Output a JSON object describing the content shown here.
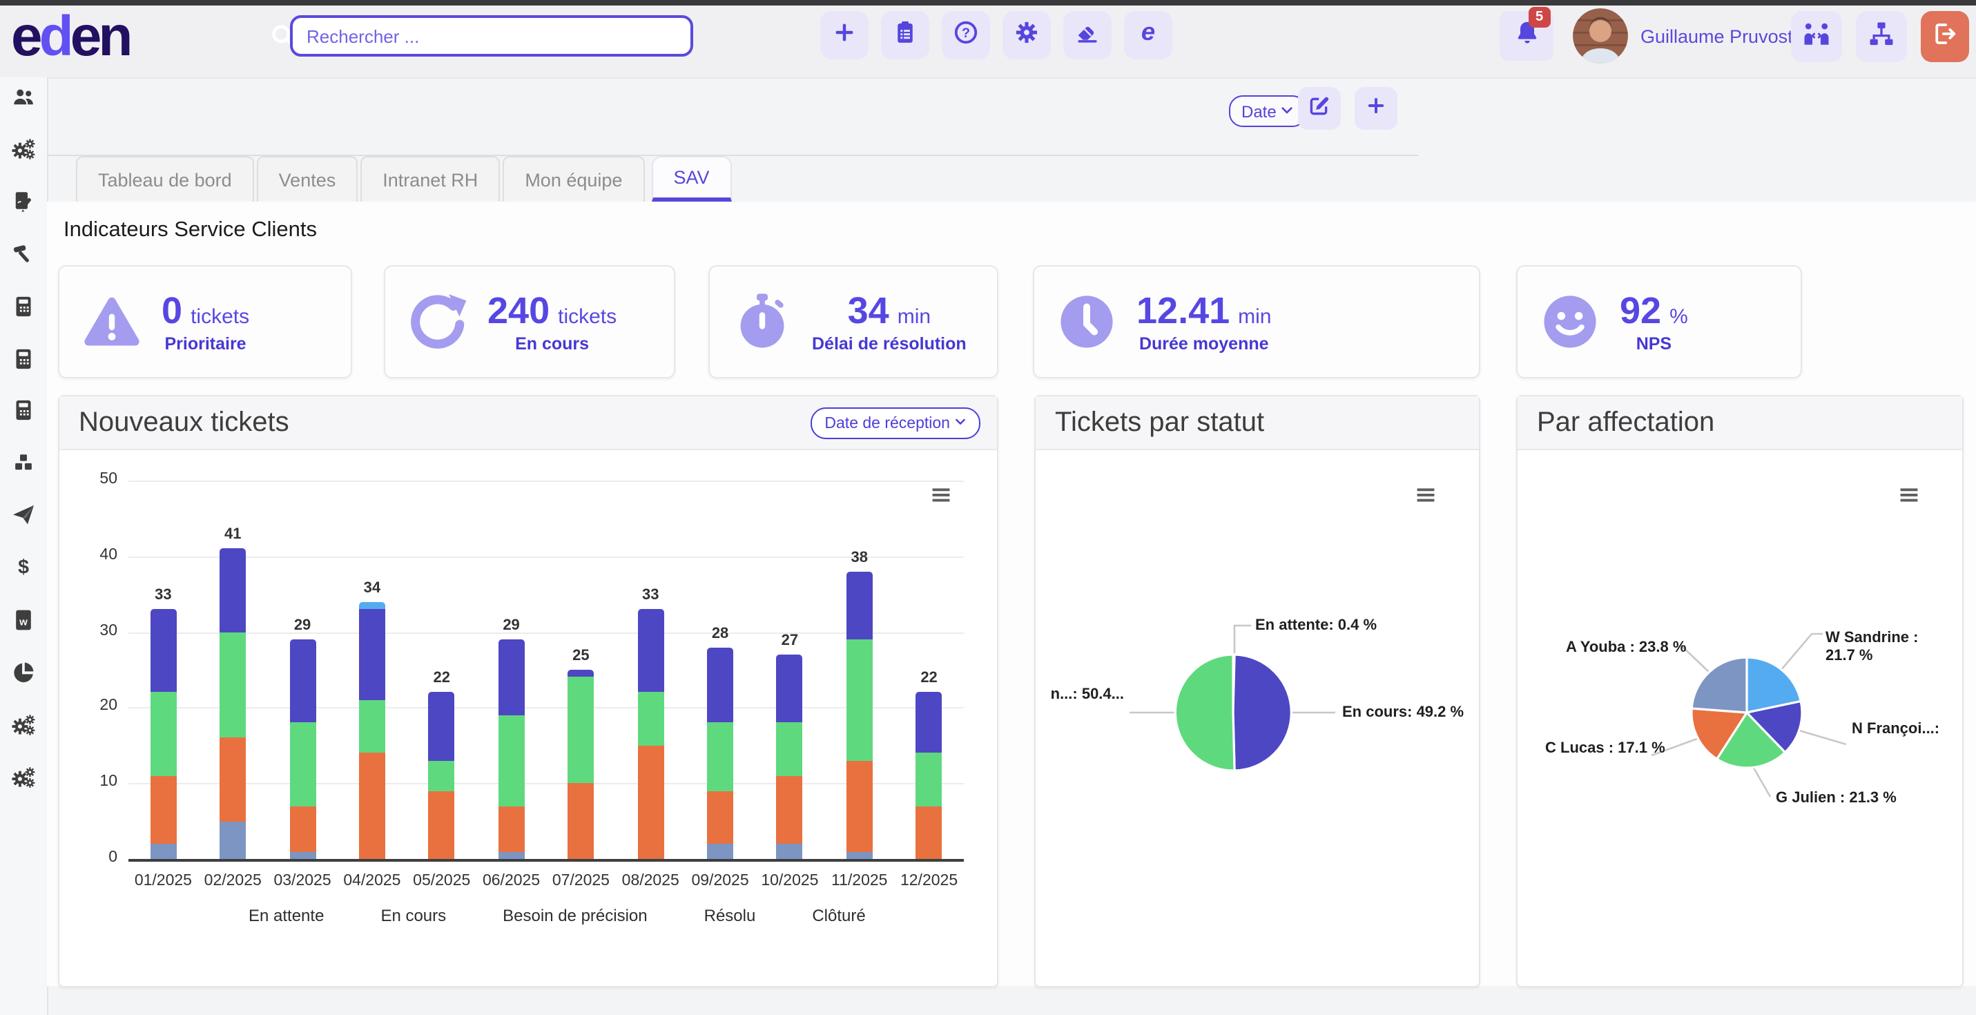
{
  "app": {
    "logo": "eden"
  },
  "header": {
    "search_placeholder": "Rechercher ...",
    "quick_actions": [
      "plus-icon",
      "clipboard-icon",
      "question-icon",
      "gear-icon",
      "eraser-icon",
      "eden-e-icon"
    ],
    "notifications_count": "5",
    "user_name": "Guillaume Pruvost",
    "right_actions": [
      "people-arrows-icon",
      "sitemap-icon",
      "sign-out-icon"
    ]
  },
  "sidebar": {
    "items": [
      "users-icon",
      "gears-icon",
      "file-signature-icon",
      "hammer-icon",
      "calculator-icon",
      "calculator-icon",
      "calculator-icon",
      "cubes-icon",
      "paper-plane-icon",
      "dollar-icon",
      "file-word-icon",
      "chart-pie-icon",
      "gears-icon",
      "gears-icon"
    ]
  },
  "toolbar": {
    "date_label": "Date"
  },
  "tabs": [
    {
      "label": "Tableau de bord",
      "active": false
    },
    {
      "label": "Ventes",
      "active": false
    },
    {
      "label": "Intranet RH",
      "active": false
    },
    {
      "label": "Mon équipe",
      "active": false
    },
    {
      "label": "SAV",
      "active": true
    }
  ],
  "section_title": "Indicateurs Service Clients",
  "kpis": [
    {
      "icon": "warning-icon",
      "value": "0",
      "unit": "tickets",
      "label": "Prioritaire"
    },
    {
      "icon": "rotate-right-icon",
      "value": "240",
      "unit": "tickets",
      "label": "En cours"
    },
    {
      "icon": "stopwatch-icon",
      "value": "34",
      "unit": "min",
      "label": "Délai de résolution"
    },
    {
      "icon": "clock-icon",
      "value": "12.41",
      "unit": "min",
      "label": "Durée moyenne"
    },
    {
      "icon": "smiley-icon",
      "value": "92",
      "unit": "%",
      "label": "NPS"
    }
  ],
  "chart_data": [
    {
      "type": "bar",
      "title": "Nouveaux tickets",
      "filter_label": "Date de réception",
      "categories": [
        "01/2025",
        "02/2025",
        "03/2025",
        "04/2025",
        "05/2025",
        "06/2025",
        "07/2025",
        "08/2025",
        "09/2025",
        "10/2025",
        "11/2025",
        "12/2025"
      ],
      "series": [
        {
          "name": "En attente",
          "color": "#55abef",
          "values": [
            0,
            0,
            0,
            1,
            0,
            0,
            0,
            0,
            0,
            0,
            0,
            0
          ]
        },
        {
          "name": "En cours",
          "color": "#4d47c3",
          "values": [
            11,
            11,
            11,
            12,
            9,
            10,
            1,
            11,
            10,
            9,
            9,
            8
          ]
        },
        {
          "name": "Besoin de précision",
          "color": "#5fd97e",
          "values": [
            11,
            14,
            11,
            7,
            4,
            12,
            14,
            7,
            9,
            7,
            16,
            7
          ]
        },
        {
          "name": "Résolu",
          "color": "#e8713f",
          "values": [
            9,
            11,
            6,
            14,
            9,
            6,
            10,
            15,
            7,
            9,
            12,
            7
          ]
        },
        {
          "name": "Clôturé",
          "color": "#7d95c3",
          "values": [
            2,
            5,
            1,
            0,
            0,
            1,
            0,
            0,
            2,
            2,
            1,
            0
          ]
        }
      ],
      "stack_order_bottom_to_top": [
        "Clôturé",
        "Résolu",
        "Besoin de précision",
        "En cours",
        "En attente"
      ],
      "totals": [
        33,
        41,
        29,
        34,
        22,
        29,
        25,
        33,
        28,
        27,
        38,
        22
      ],
      "ylim": [
        0,
        50
      ],
      "ytick": 10,
      "grid": true,
      "legend_position": "bottom"
    },
    {
      "type": "pie",
      "title": "Tickets par statut",
      "slices": [
        {
          "name": "En attente",
          "pct": 0.4,
          "color": "#55abef",
          "label": "En attente: 0.4 %"
        },
        {
          "name": "En cours",
          "pct": 49.2,
          "color": "#4d47c3",
          "label": "En cours: 49.2 %"
        },
        {
          "name": "Besoin de précision",
          "pct": 50.4,
          "color": "#5fd97e",
          "label": "n...: 50.4..."
        }
      ]
    },
    {
      "type": "pie",
      "title": "Par affectation",
      "slices": [
        {
          "name": "W Sandrine",
          "pct": 21.7,
          "color": "#55abef",
          "label": "W Sandrine : 21.7 %"
        },
        {
          "name": "N François",
          "pct": 16.1,
          "color": "#4d47c3",
          "label": "N Françoi...:"
        },
        {
          "name": "G Julien",
          "pct": 21.3,
          "color": "#5fd97e",
          "label": "G Julien : 21.3 %"
        },
        {
          "name": "C Lucas",
          "pct": 17.1,
          "color": "#e8713f",
          "label": "C Lucas : 17.1 %"
        },
        {
          "name": "A Youba",
          "pct": 23.8,
          "color": "#7d95c3",
          "label": "A Youba : 23.8 %"
        }
      ]
    }
  ]
}
